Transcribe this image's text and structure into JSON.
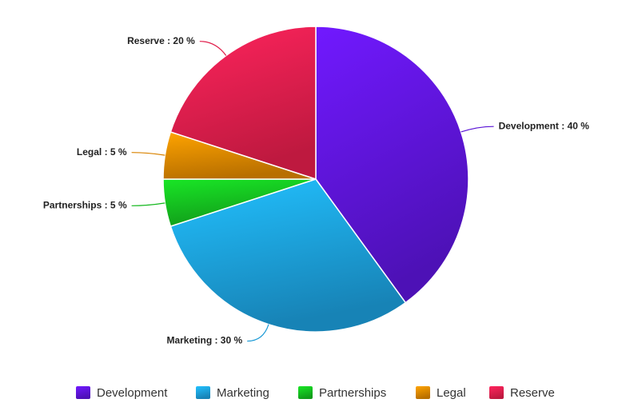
{
  "chart_data": {
    "type": "pie",
    "categories": [
      "Development",
      "Marketing",
      "Partnerships",
      "Legal",
      "Reserve"
    ],
    "values": [
      40,
      30,
      5,
      5,
      20
    ],
    "value_labels": [
      "Development : 40 %",
      "Marketing : 30 %",
      "Partnerships : 5 %",
      "Legal : 5 %",
      "Reserve : 20 %"
    ],
    "colors": [
      "#5a14d6",
      "#1b9ad6",
      "#14b81e",
      "#d98300",
      "#e01d4a"
    ],
    "legend": "bottom"
  }
}
